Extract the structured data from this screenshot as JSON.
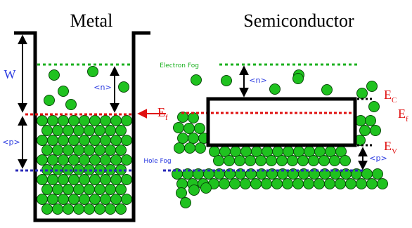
{
  "titles": {
    "metal": "Metal",
    "semiconductor": "Semiconductor"
  },
  "labels": {
    "W": "W",
    "n_metal": "<n>",
    "p_metal": "<p>",
    "Ef_metal": "Ef",
    "electron_fog": "Electron Fog",
    "hole_fog": "Hole Fog",
    "n_semi": "<n>",
    "p_semi": "<p>",
    "Ec": "EC",
    "Ef_semi": "Ef",
    "Ev": "EV"
  },
  "colors": {
    "particle_fill": "#1fc21f",
    "particle_stroke": "#0a4a0a",
    "electron_fog": "#19b01e",
    "fermi_level": "#e01010",
    "hole_fog": "#2a2ab8",
    "label_blue": "#2a3ae0",
    "label_red": "#e01010",
    "outline": "#000000"
  }
}
